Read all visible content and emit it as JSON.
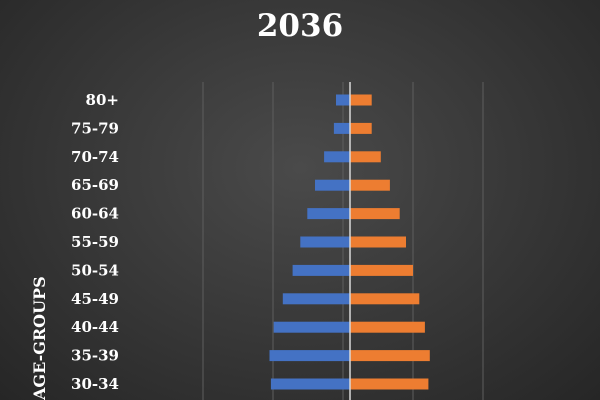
{
  "chart_data": {
    "type": "bar",
    "title": "2036",
    "ylabel": "AGE-GROUPS",
    "xlabel": "",
    "categories": [
      "80+",
      "75-79",
      "70-74",
      "65-69",
      "60-64",
      "55-59",
      "50-54",
      "45-49",
      "40-44",
      "35-39",
      "30-34"
    ],
    "series": [
      {
        "values": [
          -20,
          -23,
          -37,
          -50,
          -61,
          -71,
          -82,
          -96,
          -109,
          -115,
          -113
        ],
        "color": "#4472c4"
      },
      {
        "values": [
          31,
          31,
          44,
          57,
          71,
          80,
          90,
          99,
          107,
          114,
          112
        ],
        "color": "#ed7d31"
      }
    ],
    "xlim": [
      -210,
      210
    ],
    "orientation": "horizontal",
    "grid": true,
    "legend": "none"
  }
}
